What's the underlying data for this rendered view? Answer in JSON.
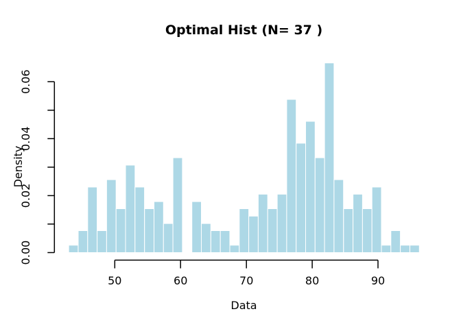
{
  "figure": {
    "title": "Optimal Hist (N= 37 )",
    "xlabel": "Data",
    "ylabel": "Density"
  },
  "colors": {
    "bar_fill": "#ADD8E6",
    "bar_border": "#FFFFFF",
    "axis": "#000000",
    "text": "#000000",
    "background": "#FFFFFF"
  },
  "chart_data": {
    "type": "bar",
    "subtype": "histogram",
    "title": "Optimal Hist (N= 37 )",
    "xlabel": "Data",
    "ylabel": "Density",
    "n_bins": 37,
    "bin_start": 43.0,
    "bin_width": 1.44,
    "bin_density": [
      0.0026,
      0.0077,
      0.023,
      0.0077,
      0.0256,
      0.0154,
      0.0307,
      0.023,
      0.0154,
      0.0179,
      0.0102,
      0.0333,
      0,
      0.0179,
      0.0102,
      0.0077,
      0.0077,
      0.0026,
      0.0154,
      0.0128,
      0.0205,
      0.0154,
      0.0205,
      0.0538,
      0.0384,
      0.0461,
      0.0333,
      0.0666,
      0.0256,
      0.0154,
      0.0205,
      0.0154,
      0.023,
      0.0026,
      0.0077,
      0.0026,
      0.0026
    ],
    "x_ticks": [
      50,
      60,
      70,
      80,
      90
    ],
    "x_tick_labels": [
      "50",
      "60",
      "70",
      "80",
      "90"
    ],
    "y_ticks": [
      0,
      0.01,
      0.02,
      0.03,
      0.04,
      0.05,
      0.06
    ],
    "y_tick_labels": [
      "0.00",
      "",
      "0.02",
      "",
      "0.04",
      "",
      "0.06"
    ],
    "xlim": [
      40.9,
      98.3
    ],
    "ylim": [
      0,
      0.0693
    ],
    "grid": false,
    "legend_position": "none"
  }
}
